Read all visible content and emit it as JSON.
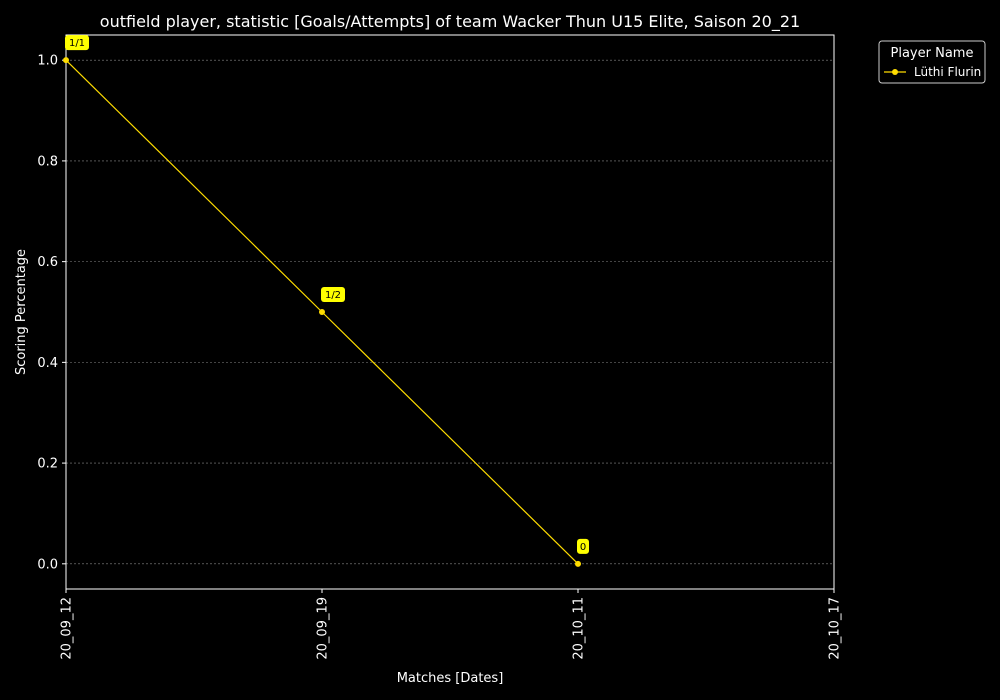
{
  "chart_data": {
    "type": "line",
    "title": "outfield player, statistic [Goals/Attempts] of team Wacker Thun U15 Elite, Saison 20_21",
    "xlabel": "Matches [Dates]",
    "ylabel": "Scoring Percentage",
    "categories": [
      "20_09_12",
      "20_09_19",
      "20_10_11",
      "20_10_17"
    ],
    "ylim": [
      -0.05,
      1.05
    ],
    "yticks": [
      "0.0",
      "0.2",
      "0.4",
      "0.6",
      "0.8",
      "1.0"
    ],
    "grid": true,
    "legend": {
      "title": "Player Name",
      "placement": "outside-top-right"
    },
    "series": [
      {
        "name": "Lüthi Flurin",
        "color": "#ffdd00",
        "points": [
          {
            "category": "20_09_12",
            "value": 1.0,
            "label": "1/1"
          },
          {
            "category": "20_09_19",
            "value": 0.5,
            "label": "1/2"
          },
          {
            "category": "20_10_11",
            "value": 0.0,
            "label": "0"
          }
        ]
      }
    ],
    "colors": {
      "background": "#000000",
      "text": "#ffffff",
      "grid": "#888888",
      "label_box": "#ffff00"
    }
  }
}
